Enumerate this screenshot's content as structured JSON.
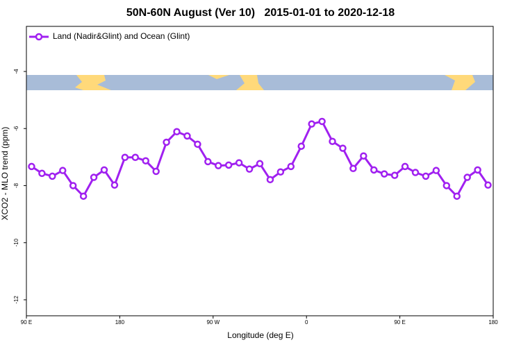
{
  "chart_data": {
    "type": "line",
    "title": "50N-60N August (Ver 10)   2015-01-01 to 2020-12-18",
    "x_label": "Longitude (deg E)",
    "y_label": "XCO2 - MLO trend (ppm)",
    "x": [
      95,
      105,
      115,
      125,
      135,
      145,
      155,
      165,
      175,
      185,
      195,
      205,
      215,
      225,
      235,
      245,
      255,
      265,
      275,
      285,
      295,
      305,
      315,
      325,
      335,
      345,
      355,
      365,
      375,
      385,
      395,
      405,
      415,
      425,
      435,
      445,
      455,
      465,
      475,
      485,
      495,
      505,
      515,
      525,
      535
    ],
    "series": [
      {
        "name": "Land (Nadir&Glint) and Ocean (Glint)",
        "color": "#a020f0",
        "values": [
          -7.33,
          -7.57,
          -7.67,
          -7.47,
          -8.0,
          -8.37,
          -7.71,
          -7.45,
          -7.98,
          -7.01,
          -7.01,
          -7.13,
          -7.5,
          -6.48,
          -6.11,
          -6.26,
          -6.55,
          -7.16,
          -7.3,
          -7.28,
          -7.2,
          -7.42,
          -7.23,
          -7.79,
          -7.52,
          -7.33,
          -6.62,
          -5.84,
          -5.75,
          -6.45,
          -6.69,
          -7.4,
          -6.96,
          -7.45,
          -7.59,
          -7.64,
          -7.33,
          -7.54,
          -7.67,
          -7.47,
          -8.0,
          -8.37,
          -7.71,
          -7.45,
          -7.98
        ]
      }
    ],
    "xlim": [
      90,
      540
    ],
    "xticks": [
      {
        "value": 90,
        "label": "90 E"
      },
      180,
      {
        "value": 270,
        "label": "90 W"
      },
      {
        "value": 360,
        "label": "0"
      },
      {
        "value": 450,
        "label": "90 E"
      },
      {
        "value": 540,
        "label": "180"
      }
    ],
    "ylim": [
      -12.56,
      -2.42
    ],
    "yticks": [
      -4,
      -6,
      -8,
      -10,
      -12
    ],
    "legend": "top-left"
  }
}
